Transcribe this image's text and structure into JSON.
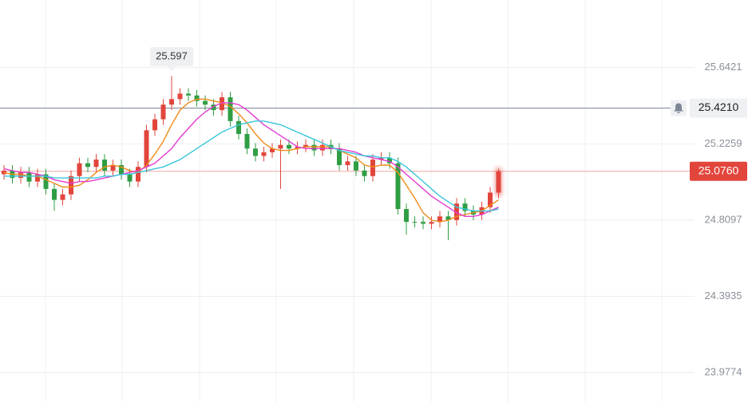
{
  "chart_data": {
    "type": "candlestick",
    "ylim": [
      23.817,
      26.011
    ],
    "yticks": [
      {
        "value": 25.6421,
        "label": "25.6421"
      },
      {
        "value": 25.2259,
        "label": "25.2259"
      },
      {
        "value": 24.8097,
        "label": "24.8097"
      },
      {
        "value": 24.3935,
        "label": "24.3935"
      },
      {
        "value": 23.9774,
        "label": "23.9774"
      }
    ],
    "grid": true,
    "up_color": "#e2453c",
    "down_color": "#2f9e44",
    "open": [
      25.06,
      25.08,
      25.04,
      25.07,
      25.02,
      25.06,
      24.98,
      24.92,
      24.95,
      25.05,
      25.12,
      25.1,
      25.14,
      25.08,
      25.11,
      25.06,
      25.02,
      25.1,
      25.3,
      25.36,
      25.44,
      25.47,
      25.5,
      25.49,
      25.46,
      25.44,
      25.41,
      25.48,
      25.35,
      25.28,
      25.2,
      25.16,
      25.18,
      25.2,
      25.22,
      25.2,
      25.21,
      25.22,
      25.19,
      25.22,
      25.2,
      25.11,
      25.13,
      25.08,
      25.05,
      25.14,
      25.15,
      25.12,
      24.87,
      24.8,
      24.8,
      24.79,
      24.8,
      24.83,
      24.81,
      24.9,
      24.86,
      24.84,
      24.88,
      24.96
    ],
    "high": [
      25.11,
      25.11,
      25.1,
      25.1,
      25.09,
      25.09,
      25.01,
      24.98,
      25.08,
      25.15,
      25.15,
      25.17,
      25.17,
      25.14,
      25.14,
      25.09,
      25.13,
      25.33,
      25.39,
      25.47,
      25.597,
      25.53,
      25.53,
      25.52,
      25.49,
      25.47,
      25.51,
      25.51,
      25.38,
      25.31,
      25.23,
      25.21,
      25.23,
      25.25,
      25.25,
      25.24,
      25.25,
      25.25,
      25.25,
      25.25,
      25.23,
      25.16,
      25.16,
      25.11,
      25.17,
      25.18,
      25.18,
      25.15,
      24.9,
      24.83,
      24.83,
      24.83,
      24.86,
      24.86,
      24.93,
      24.93,
      24.89,
      24.91,
      24.99,
      25.09
    ],
    "low": [
      25.03,
      25.01,
      25.01,
      24.99,
      24.99,
      24.95,
      24.86,
      24.89,
      24.92,
      25.02,
      25.07,
      25.07,
      25.05,
      25.05,
      25.03,
      24.99,
      24.99,
      25.07,
      25.27,
      25.33,
      25.41,
      25.44,
      25.46,
      25.43,
      25.41,
      25.38,
      25.38,
      25.32,
      25.25,
      25.17,
      25.13,
      25.13,
      25.15,
      24.98,
      25.17,
      25.17,
      25.18,
      25.16,
      25.16,
      25.17,
      25.08,
      25.08,
      25.05,
      25.02,
      25.02,
      25.11,
      25.09,
      24.84,
      24.73,
      24.77,
      24.76,
      24.76,
      24.77,
      24.7,
      24.78,
      24.83,
      24.81,
      24.81,
      24.85,
      24.93
    ],
    "close": [
      25.08,
      25.04,
      25.07,
      25.02,
      25.06,
      24.98,
      24.92,
      24.95,
      25.05,
      25.12,
      25.1,
      25.14,
      25.08,
      25.11,
      25.06,
      25.02,
      25.1,
      25.3,
      25.36,
      25.44,
      25.47,
      25.5,
      25.49,
      25.46,
      25.44,
      25.41,
      25.48,
      25.35,
      25.28,
      25.2,
      25.16,
      25.18,
      25.2,
      25.22,
      25.2,
      25.21,
      25.22,
      25.19,
      25.22,
      25.2,
      25.11,
      25.13,
      25.08,
      25.05,
      25.14,
      25.15,
      25.12,
      24.87,
      24.8,
      24.8,
      24.79,
      24.8,
      24.83,
      24.81,
      24.9,
      24.86,
      24.84,
      24.88,
      24.96,
      25.076
    ],
    "series": [
      {
        "color": "#f08c1a",
        "values": [
          25.07,
          25.06,
          25.06,
          25.05,
          25.05,
          25.03,
          25.01,
          24.99,
          24.99,
          25.0,
          25.03,
          25.07,
          25.1,
          25.11,
          25.1,
          25.08,
          25.07,
          25.11,
          25.17,
          25.24,
          25.33,
          25.41,
          25.45,
          25.47,
          25.47,
          25.46,
          25.45,
          25.43,
          25.39,
          25.34,
          25.28,
          25.23,
          25.2,
          25.19,
          25.19,
          25.2,
          25.21,
          25.21,
          25.21,
          25.21,
          25.19,
          25.17,
          25.15,
          25.11,
          25.1,
          25.11,
          25.11,
          25.07,
          25.0,
          24.93,
          24.85,
          24.81,
          24.8,
          24.81,
          24.83,
          24.84,
          24.85,
          24.86,
          24.89,
          24.92
        ]
      },
      {
        "color": "#e23bd2",
        "values": [
          25.09,
          25.08,
          25.07,
          25.07,
          25.06,
          25.05,
          25.03,
          25.02,
          25.01,
          25.02,
          25.02,
          25.03,
          25.04,
          25.05,
          25.06,
          25.07,
          25.08,
          25.1,
          25.12,
          25.16,
          25.2,
          25.26,
          25.31,
          25.36,
          25.4,
          25.43,
          25.45,
          25.45,
          25.44,
          25.41,
          25.37,
          25.33,
          25.3,
          25.27,
          25.24,
          25.21,
          25.2,
          25.2,
          25.2,
          25.2,
          25.2,
          25.19,
          25.18,
          25.16,
          25.15,
          25.14,
          25.13,
          25.1,
          25.06,
          25.02,
          24.98,
          24.94,
          24.91,
          24.88,
          24.85,
          24.83,
          24.83,
          24.84,
          24.86,
          24.88
        ]
      },
      {
        "color": "#38c6dc",
        "values": [
          25.05,
          25.05,
          25.05,
          25.05,
          25.05,
          25.05,
          25.04,
          25.04,
          25.04,
          25.04,
          25.04,
          25.04,
          25.05,
          25.05,
          25.06,
          25.06,
          25.07,
          25.08,
          25.09,
          25.1,
          25.12,
          25.14,
          25.17,
          25.2,
          25.23,
          25.26,
          25.29,
          25.31,
          25.33,
          25.34,
          25.35,
          25.35,
          25.34,
          25.33,
          25.31,
          25.29,
          25.27,
          25.25,
          25.23,
          25.21,
          25.19,
          25.18,
          25.17,
          25.16,
          25.16,
          25.15,
          25.15,
          25.13,
          25.1,
          25.06,
          25.02,
          24.98,
          24.94,
          24.91,
          24.88,
          24.87,
          24.86,
          24.86,
          24.86,
          24.87
        ]
      }
    ],
    "alert_price": {
      "value": 25.421,
      "label": "25.4210"
    },
    "last_price": {
      "value": 25.076,
      "label": "25.0760"
    }
  }
}
